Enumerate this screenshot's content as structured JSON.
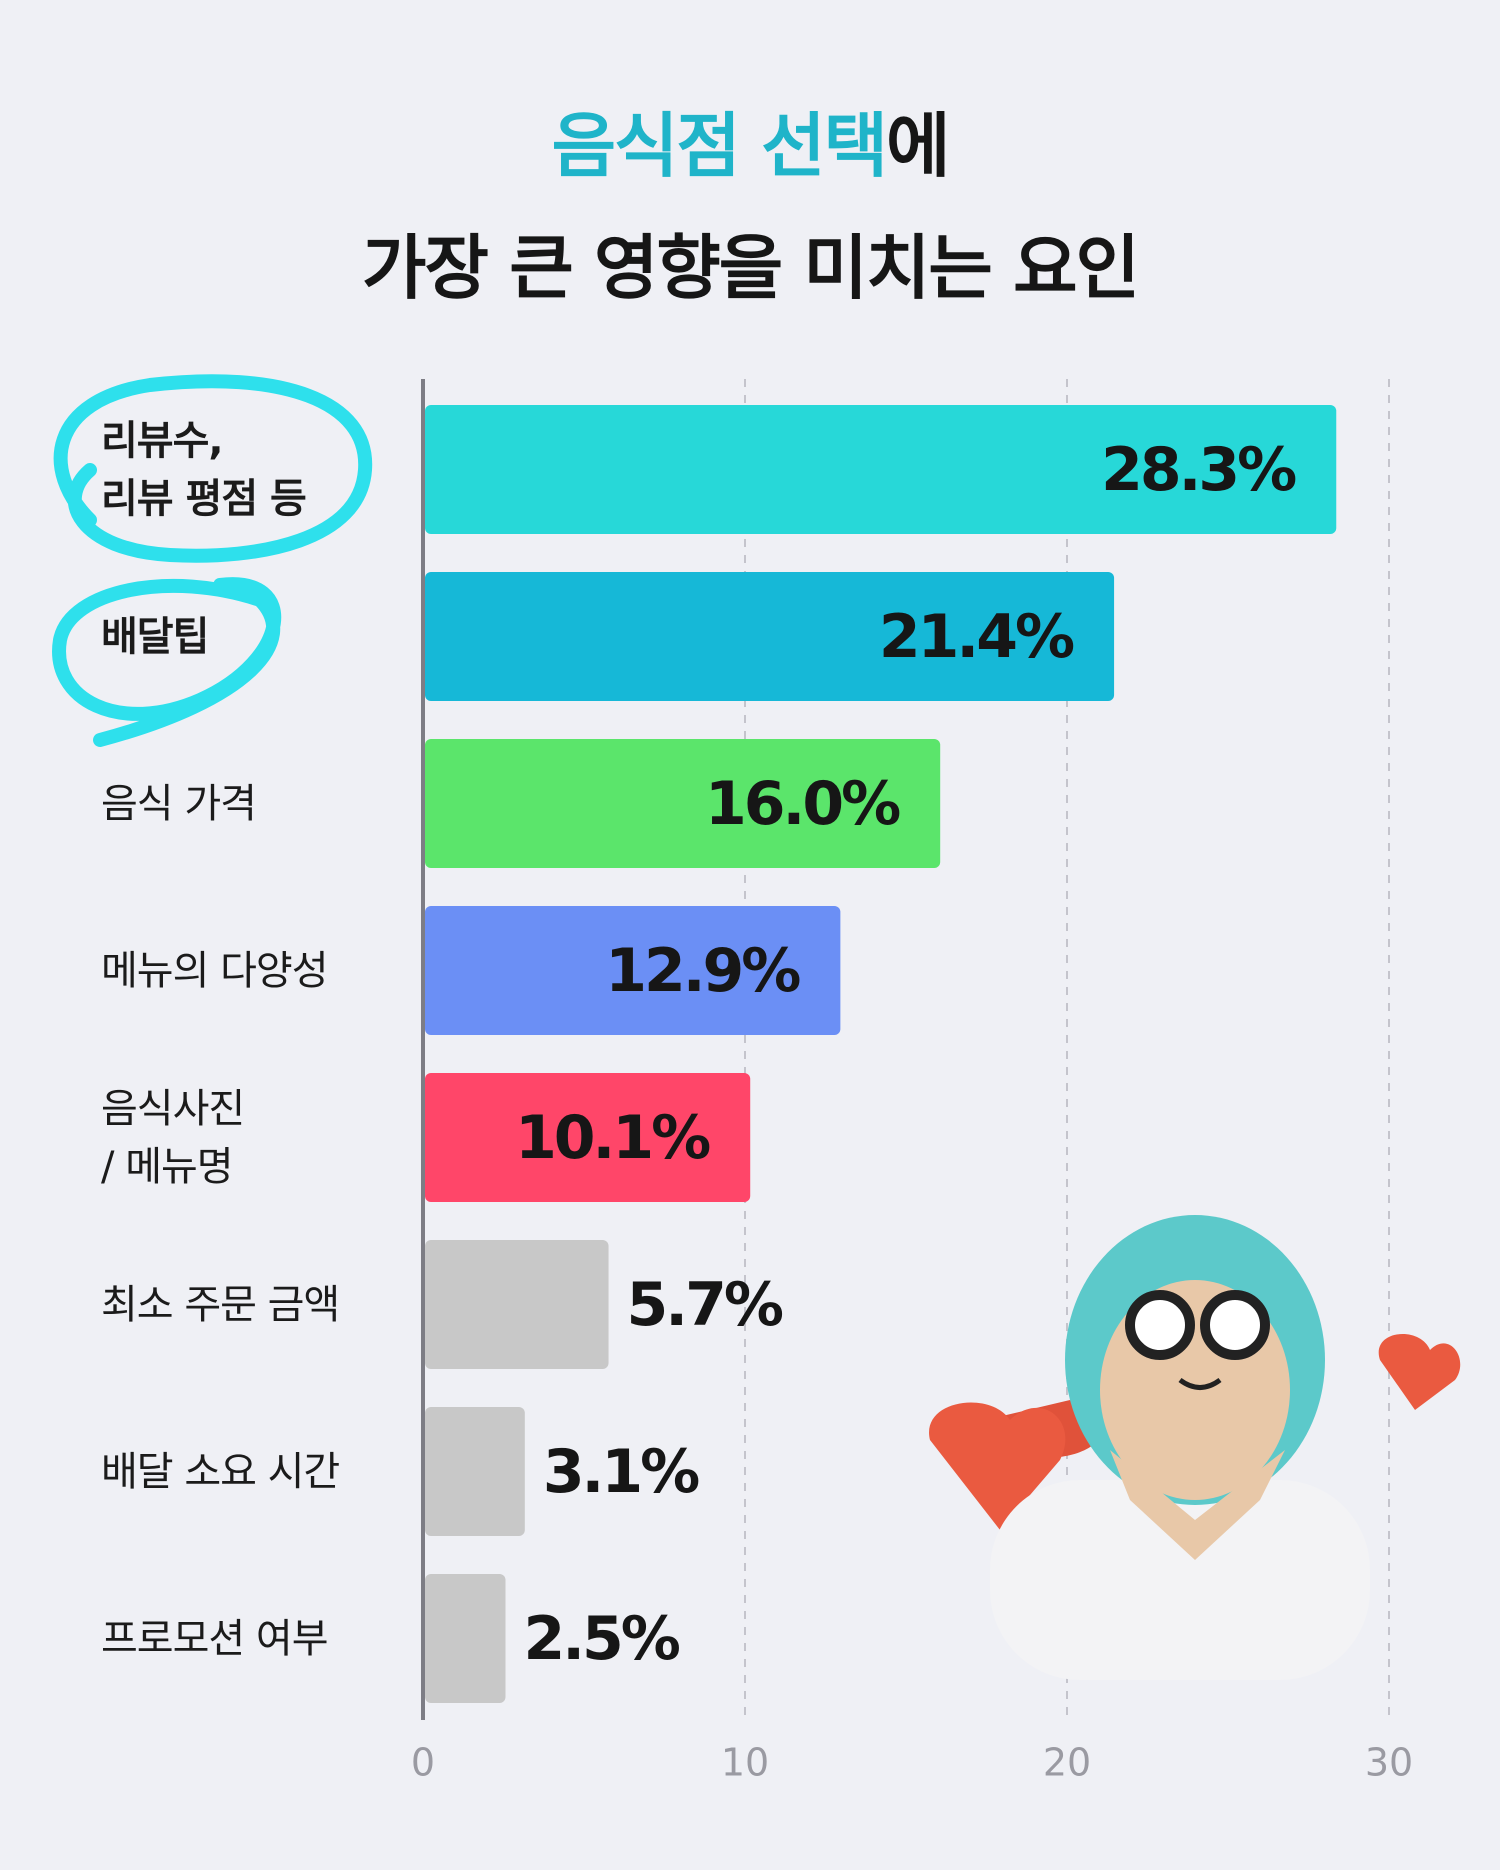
{
  "chart_data": {
    "type": "bar",
    "orientation": "horizontal",
    "title_highlight": "음식점 선택",
    "title_rest": "에",
    "title_line2": "가장 큰 영향을 미치는 요인",
    "categories": [
      "리뷰수,\n리뷰 평점 등",
      "배달팁",
      "음식 가격",
      "메뉴의 다양성",
      "음식사진\n/ 메뉴명",
      "최소 주문 금액",
      "배달 소요 시간",
      "프로모션 여부"
    ],
    "values": [
      28.3,
      21.4,
      16.0,
      12.9,
      10.1,
      5.7,
      3.1,
      2.5
    ],
    "value_labels": [
      "28.3%",
      "21.4%",
      "16.0%",
      "12.9%",
      "10.1%",
      "5.7%",
      "3.1%",
      "2.5%"
    ],
    "colors": [
      "#27d8d8",
      "#16b8d7",
      "#5be56b",
      "#6b8ff5",
      "#ff4669",
      "#c8c8c8",
      "#c8c8c8",
      "#c8c8c8"
    ],
    "xlim": [
      0,
      30
    ],
    "xticks": [
      0,
      10,
      20,
      30
    ],
    "grid": true
  }
}
